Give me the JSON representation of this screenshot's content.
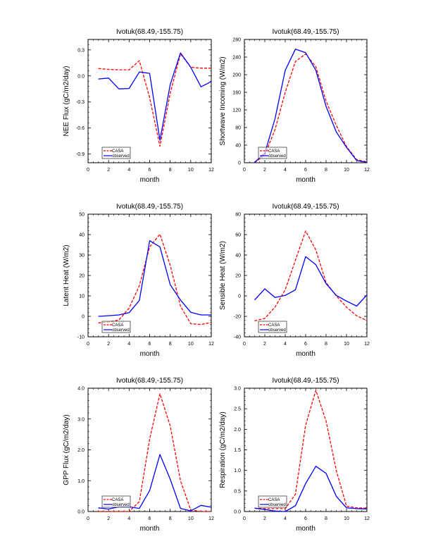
{
  "chart_data": [
    {
      "type": "line",
      "title": "Ivotuk(68.49,-155.75)",
      "xlabel": "month",
      "ylabel": "NEE Flux (gC/m2/day)",
      "xlim": [
        0,
        12
      ],
      "ylim": [
        -1.0,
        0.42
      ],
      "xticks": [
        0,
        2,
        4,
        6,
        8,
        10,
        12
      ],
      "xtick_labels": [
        "0",
        "2",
        "4",
        "6",
        "8",
        "10",
        "12"
      ],
      "yticks": [
        0.3,
        0.0,
        -0.3,
        -0.6,
        -0.9
      ],
      "ytick_labels": [
        "0.3",
        "0.0",
        "-0.3",
        "-0.6",
        "-0.9"
      ],
      "x": [
        1,
        2,
        3,
        4,
        5,
        6,
        7,
        8,
        9,
        10,
        11,
        12
      ],
      "legend_position": "bottom-left",
      "series": [
        {
          "name": "CASA",
          "color": "#ff0000",
          "style": "dashed",
          "values": [
            0.085,
            0.075,
            0.07,
            0.07,
            0.175,
            -0.25,
            -0.81,
            -0.2,
            0.255,
            0.1,
            0.09,
            0.09
          ]
        },
        {
          "name": "observed",
          "color": "#0000ff",
          "style": "solid",
          "values": [
            -0.035,
            -0.025,
            -0.15,
            -0.145,
            0.045,
            0.03,
            -0.74,
            -0.1,
            0.265,
            0.1,
            -0.125,
            -0.065
          ]
        }
      ]
    },
    {
      "type": "line",
      "title": "Ivotuk(68.49,-155.75)",
      "xlabel": "month",
      "ylabel": "Shortwave Incoming (W/m2)",
      "xlim": [
        0,
        12
      ],
      "ylim": [
        0,
        280
      ],
      "xticks": [
        0,
        2,
        4,
        6,
        8,
        10,
        12
      ],
      "xtick_labels": [
        "0",
        "2",
        "4",
        "6",
        "8",
        "10",
        "12"
      ],
      "yticks": [
        0,
        40,
        80,
        120,
        160,
        200,
        240,
        280
      ],
      "ytick_labels": [
        "0",
        "40",
        "80",
        "120",
        "160",
        "200",
        "240",
        "280"
      ],
      "x": [
        1,
        2,
        3,
        4,
        5,
        6,
        7,
        8,
        9,
        10,
        11,
        12
      ],
      "legend_position": "bottom-left",
      "series": [
        {
          "name": "CASA",
          "color": "#ff0000",
          "style": "dashed",
          "values": [
            0,
            18,
            75,
            160,
            230,
            247,
            218,
            140,
            85,
            37,
            7,
            2
          ]
        },
        {
          "name": "observed",
          "color": "#0000ff",
          "style": "solid",
          "values": [
            1,
            22,
            100,
            210,
            258,
            250,
            210,
            128,
            70,
            35,
            5,
            1
          ]
        }
      ]
    },
    {
      "type": "line",
      "title": "Ivotuk(68.49,-155.75)",
      "xlabel": "month",
      "ylabel": "Latent Heat (W/m2)",
      "xlim": [
        0,
        12
      ],
      "ylim": [
        -10,
        50
      ],
      "xticks": [
        0,
        2,
        4,
        6,
        8,
        10,
        12
      ],
      "xtick_labels": [
        "0",
        "2",
        "4",
        "6",
        "8",
        "10",
        "12"
      ],
      "yticks": [
        -10,
        0,
        10,
        20,
        30,
        40,
        50
      ],
      "ytick_labels": [
        "-10",
        "0",
        "10",
        "20",
        "30",
        "40",
        "50"
      ],
      "x": [
        1,
        2,
        3,
        4,
        5,
        6,
        7,
        8,
        9,
        10,
        11,
        12
      ],
      "legend_position": "bottom-left",
      "series": [
        {
          "name": "CASA",
          "color": "#ff0000",
          "style": "dashed",
          "values": [
            -3.2,
            -2.8,
            -1.8,
            4,
            15,
            34,
            40.2,
            25,
            5,
            -3.6,
            -4,
            -3
          ]
        },
        {
          "name": "observed",
          "color": "#0000ff",
          "style": "solid",
          "values": [
            0,
            0.3,
            0.7,
            1.8,
            7.8,
            37,
            34,
            15.5,
            8,
            2,
            0.7,
            0.7
          ]
        }
      ]
    },
    {
      "type": "line",
      "title": "Ivotuk(68.49,-155.75)",
      "xlabel": "month",
      "ylabel": "Sensible Heat (W/m2)",
      "xlim": [
        0,
        12
      ],
      "ylim": [
        -40,
        80
      ],
      "xticks": [
        0,
        2,
        4,
        6,
        8,
        10,
        12
      ],
      "xtick_labels": [
        "0",
        "2",
        "4",
        "6",
        "8",
        "10",
        "12"
      ],
      "yticks": [
        -40,
        -20,
        0,
        20,
        40,
        60,
        80
      ],
      "ytick_labels": [
        "-40",
        "-20",
        "0",
        "20",
        "40",
        "60",
        "80"
      ],
      "x": [
        1,
        2,
        3,
        4,
        5,
        6,
        7,
        8,
        9,
        10,
        11,
        12
      ],
      "legend_position": "bottom-left",
      "series": [
        {
          "name": "CASA",
          "color": "#ff0000",
          "style": "dashed",
          "values": [
            -24.5,
            -22,
            -11,
            6,
            35,
            63.5,
            45,
            13,
            0,
            -11,
            -19.5,
            -24
          ]
        },
        {
          "name": "observed",
          "color": "#0000ff",
          "style": "solid",
          "values": [
            -4,
            7,
            -1.5,
            0.5,
            6,
            38.5,
            30.5,
            12,
            0.5,
            -5,
            -10,
            1
          ]
        }
      ]
    },
    {
      "type": "line",
      "title": "Ivotuk(68.49,-155.75)",
      "xlabel": "month",
      "ylabel": "GPP Flux (gC/m2/day)",
      "xlim": [
        0,
        12
      ],
      "ylim": [
        0,
        4
      ],
      "xticks": [
        0,
        2,
        4,
        6,
        8,
        10,
        12
      ],
      "xtick_labels": [
        "0",
        "2",
        "4",
        "6",
        "8",
        "10",
        "12"
      ],
      "yticks": [
        0,
        1,
        2,
        3,
        4
      ],
      "ytick_labels": [
        "0.0",
        "1.0",
        "2.0",
        "3.0",
        "4.0"
      ],
      "x": [
        1,
        2,
        3,
        4,
        5,
        6,
        7,
        8,
        9,
        10,
        11,
        12
      ],
      "legend_position": "bottom-left",
      "series": [
        {
          "name": "CASA",
          "color": "#ff0000",
          "style": "dashed",
          "values": [
            0,
            0,
            0,
            0,
            0.32,
            2.35,
            3.82,
            2.78,
            1.0,
            0.05,
            0,
            0
          ]
        },
        {
          "name": "observed",
          "color": "#0000ff",
          "style": "solid",
          "values": [
            0.12,
            0.08,
            0.15,
            0.15,
            0.1,
            0.68,
            1.85,
            1.05,
            0.1,
            0.02,
            0.2,
            0.14
          ]
        }
      ]
    },
    {
      "type": "line",
      "title": "Ivotuk(68.49,-155.75)",
      "xlabel": "month",
      "ylabel": "Respiration (gC/m2/day)",
      "xlim": [
        0,
        12
      ],
      "ylim": [
        0,
        3
      ],
      "xticks": [
        0,
        2,
        4,
        6,
        8,
        10,
        12
      ],
      "xtick_labels": [
        "0",
        "2",
        "4",
        "6",
        "8",
        "10",
        "12"
      ],
      "yticks": [
        0,
        0.5,
        1,
        1.5,
        2,
        2.5,
        3
      ],
      "ytick_labels": [
        "0.0",
        "0.5",
        "1.0",
        "1.5",
        "2.0",
        "2.5",
        "3.0"
      ],
      "x": [
        1,
        2,
        3,
        4,
        5,
        6,
        7,
        8,
        9,
        10,
        11,
        12
      ],
      "legend_position": "bottom-left",
      "series": [
        {
          "name": "CASA",
          "color": "#ff0000",
          "style": "dashed",
          "values": [
            0.08,
            0.07,
            0.07,
            0.07,
            0.42,
            2.1,
            2.95,
            2.2,
            1.0,
            0.13,
            0.09,
            0.08
          ]
        },
        {
          "name": "observed",
          "color": "#0000ff",
          "style": "solid",
          "values": [
            0.08,
            0.05,
            0.01,
            0.0,
            0.14,
            0.68,
            1.1,
            0.93,
            0.37,
            0.09,
            0.07,
            0.06
          ]
        }
      ]
    }
  ]
}
